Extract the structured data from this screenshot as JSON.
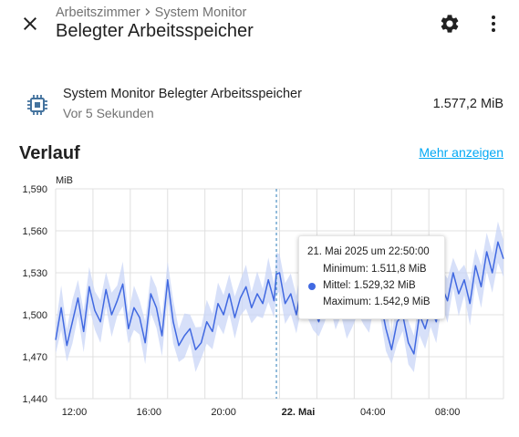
{
  "header": {
    "breadcrumb": [
      "Arbeitszimmer",
      "System Monitor"
    ],
    "title": "Belegter Arbeitsspeicher"
  },
  "entity": {
    "icon": "memory-chip-icon",
    "name": "System Monitor Belegter Arbeitsspeicher",
    "last_changed": "Vor 5 Sekunden",
    "value": "1.577,2 MiB"
  },
  "history": {
    "title": "Verlauf",
    "more_link": "Mehr anzeigen"
  },
  "colors": {
    "accent": "#03a9f4",
    "series": "#4169e1",
    "band": "#c9d6f7"
  },
  "chart_data": {
    "type": "line",
    "ylabel": "MiB",
    "ylim": [
      1440,
      1590
    ],
    "y_ticks": [
      "1,590",
      "1,560",
      "1,530",
      "1,500",
      "1,470",
      "1,440"
    ],
    "x_ticks": [
      {
        "label": "12:00",
        "hour": 1,
        "bold": false
      },
      {
        "label": "16:00",
        "hour": 5,
        "bold": false
      },
      {
        "label": "20:00",
        "hour": 9,
        "bold": false
      },
      {
        "label": "22. Mai",
        "hour": 13,
        "bold": true
      },
      {
        "label": "04:00",
        "hour": 17,
        "bold": false
      },
      {
        "label": "08:00",
        "hour": 21,
        "bold": false
      }
    ],
    "xlim": [
      0,
      24
    ],
    "grid": true,
    "cursor_hour": 11.83,
    "series": [
      {
        "hour": [
          0,
          0.3,
          0.6,
          0.9,
          1.2,
          1.5,
          1.8,
          2.1,
          2.4,
          2.7,
          3,
          3.3,
          3.6,
          3.9,
          4.2,
          4.5,
          4.8,
          5.1,
          5.4,
          5.7,
          6,
          6.3,
          6.6,
          6.9,
          7.2,
          7.5,
          7.8,
          8.1,
          8.4,
          8.7,
          9,
          9.3,
          9.6,
          9.9,
          10.2,
          10.5,
          10.8,
          11.1,
          11.4,
          11.7,
          11.83,
          12,
          12.3,
          12.6,
          12.9,
          13.2,
          13.5,
          13.8,
          14.1,
          14.4,
          14.7,
          15,
          15.3,
          15.6,
          15.9,
          16.2,
          16.5,
          16.8,
          17.1,
          17.4,
          17.7,
          18,
          18.3,
          18.6,
          18.9,
          19.2,
          19.5,
          19.8,
          20.1,
          20.4,
          20.7,
          21,
          21.3,
          21.6,
          21.9,
          22.2,
          22.5,
          22.8,
          23.1,
          23.4,
          23.7,
          24
        ],
        "mean": [
          1482,
          1505,
          1478,
          1495,
          1512,
          1488,
          1520,
          1503,
          1495,
          1518,
          1500,
          1510,
          1522,
          1490,
          1505,
          1498,
          1480,
          1515,
          1505,
          1485,
          1525,
          1495,
          1478,
          1485,
          1490,
          1475,
          1480,
          1495,
          1488,
          1508,
          1500,
          1515,
          1498,
          1512,
          1520,
          1505,
          1515,
          1508,
          1525,
          1510,
          1529,
          1530,
          1508,
          1515,
          1500,
          1522,
          1510,
          1505,
          1495,
          1510,
          1518,
          1505,
          1512,
          1498,
          1505,
          1515,
          1508,
          1500,
          1525,
          1510,
          1490,
          1475,
          1495,
          1500,
          1480,
          1472,
          1500,
          1490,
          1505,
          1495,
          1520,
          1510,
          1530,
          1515,
          1525,
          1508,
          1535,
          1520,
          1545,
          1530,
          1552,
          1540
        ]
      }
    ],
    "tooltip": {
      "time": "21. Mai 2025 um 22:50:00",
      "min": "Minimum: 1.511,8 MiB",
      "mean": "Mittel: 1.529,32 MiB",
      "max": "Maximum: 1.542,9 MiB"
    }
  }
}
